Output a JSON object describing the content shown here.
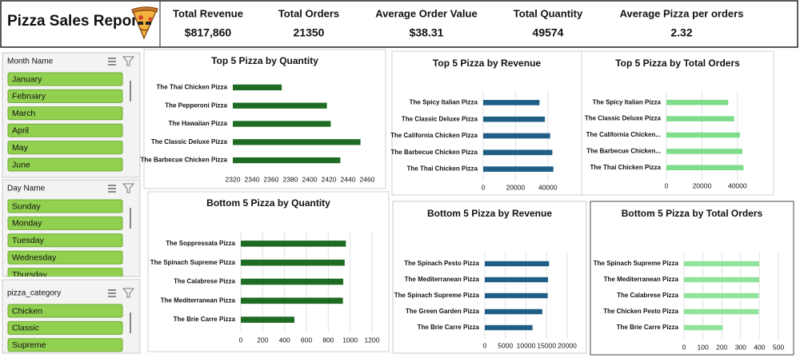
{
  "header": {
    "title": "Pizza Sales Report",
    "kpis": [
      {
        "label": "Total Revenue",
        "value": "$817,860"
      },
      {
        "label": "Total Orders",
        "value": "21350"
      },
      {
        "label": "Average Order Value",
        "value": "$38.31"
      },
      {
        "label": "Total Quantity",
        "value": "49574"
      },
      {
        "label": "Average Pizza per orders",
        "value": "2.32"
      }
    ]
  },
  "slicers": [
    {
      "title": "Month Name",
      "items": [
        "January",
        "February",
        "March",
        "April",
        "May",
        "June"
      ]
    },
    {
      "title": "Day Name",
      "items": [
        "Sunday",
        "Monday",
        "Tuesday",
        "Wednesday",
        "Thursday"
      ]
    },
    {
      "title": "pizza_category",
      "items": [
        "Chicken",
        "Classic",
        "Supreme"
      ]
    }
  ],
  "chart_data": [
    {
      "type": "bar",
      "orientation": "horizontal",
      "title": "Top 5 Pizza by Quantity",
      "categories": [
        "The Thai Chicken Pizza",
        "The Pepperoni Pizza",
        "The Hawaiian Pizza",
        "The Classic Deluxe Pizza",
        "The Barbecue Chicken Pizza"
      ],
      "values": [
        2371,
        2418,
        2422,
        2453,
        2432
      ],
      "color": "#1e6b23",
      "xlim": [
        2320,
        2460
      ],
      "xticks": [
        2320,
        2340,
        2360,
        2380,
        2400,
        2420,
        2440,
        2460
      ],
      "grid": false
    },
    {
      "type": "bar",
      "orientation": "horizontal",
      "title": "Top 5 Pizza by Revenue",
      "categories": [
        "The Spicy Italian Pizza",
        "The Classic Deluxe Pizza",
        "The California Chicken Pizza",
        "The Barbecue Chicken Pizza",
        "The Thai Chicken Pizza"
      ],
      "values": [
        34831,
        38180,
        41410,
        42768,
        43434
      ],
      "color": "#1f5f86",
      "xlim": [
        0,
        50000
      ],
      "xticks": [
        0,
        20000,
        40000
      ],
      "grid": true
    },
    {
      "type": "bar",
      "orientation": "horizontal",
      "title": "Top 5 Pizza by Total Orders",
      "categories": [
        "The Spicy Italian Pizza",
        "The Classic Deluxe Pizza",
        "The California Chicken...",
        "The Barbecue Chicken...",
        "The Thai Chicken Pizza"
      ],
      "values": [
        34831,
        38180,
        41410,
        42768,
        43434
      ],
      "color": "#7fdc8a",
      "xlim": [
        0,
        50000
      ],
      "xticks": [
        0,
        20000,
        40000
      ],
      "grid": true
    },
    {
      "type": "bar",
      "orientation": "horizontal",
      "title": "Bottom 5 Pizza by Quantity",
      "categories": [
        "The Soppressata Pizza",
        "The Spinach Supreme Pizza",
        "The Calabrese Pizza",
        "The Mediterranean Pizza",
        "The Brie Carre Pizza"
      ],
      "values": [
        961,
        950,
        937,
        934,
        490
      ],
      "color": "#1e6b23",
      "xlim": [
        0,
        1200
      ],
      "xticks": [
        0,
        200,
        400,
        600,
        800,
        1000,
        1200
      ],
      "grid": true
    },
    {
      "type": "bar",
      "orientation": "horizontal",
      "title": "Bottom 5 Pizza by Revenue",
      "categories": [
        "The Spinach Pesto Pizza",
        "The Mediterranean Pizza",
        "The Spinach Supreme Pizza",
        "The Green Garden Pizza",
        "The Brie Carre Pizza"
      ],
      "values": [
        15596,
        15360,
        15277,
        13955,
        11588
      ],
      "color": "#1f5f86",
      "xlim": [
        0,
        20000
      ],
      "xticks": [
        0,
        5000,
        10000,
        15000,
        20000
      ],
      "grid": true
    },
    {
      "type": "bar",
      "orientation": "horizontal",
      "title": "Bottom 5 Pizza by Total Orders",
      "categories": [
        "The Spinach Supreme Pizza",
        "The Mediterranean Pizza",
        "The Calabrese Pizza",
        "The Chicken Pesto Pizza",
        "The Brie Carre Pizza"
      ],
      "values": [
        398,
        398,
        396,
        395,
        205
      ],
      "color": "#8fe39a",
      "xlim": [
        0,
        500
      ],
      "xticks": [
        0,
        100,
        200,
        300,
        400,
        500
      ],
      "grid": true
    }
  ]
}
